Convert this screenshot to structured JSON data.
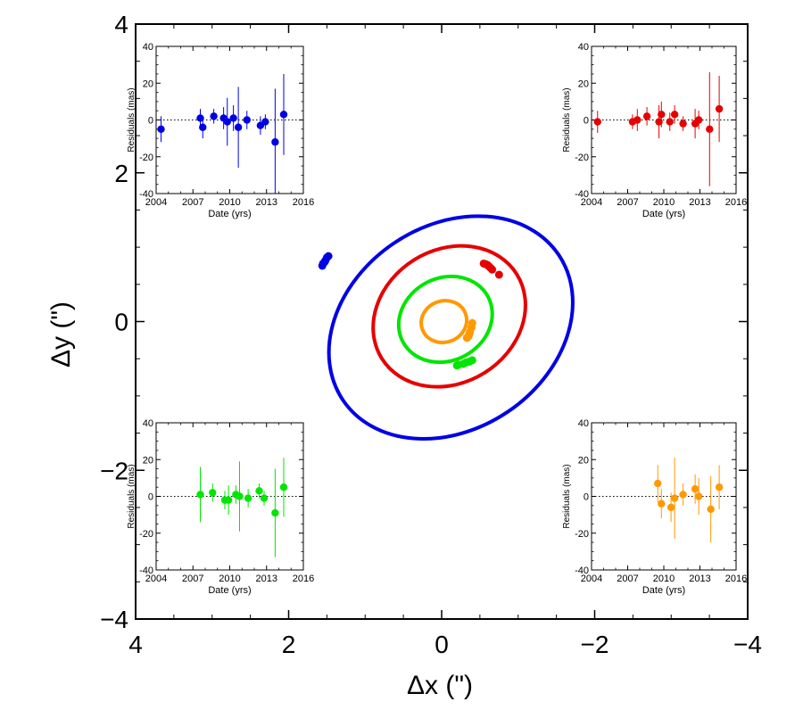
{
  "chart_data": {
    "type": "scatter",
    "main": {
      "xlabel": "Δx (\")",
      "ylabel": "Δy (\")",
      "xlim": [
        4,
        -4
      ],
      "ylim": [
        -4,
        4
      ],
      "xticks": [
        4,
        2,
        0,
        -2,
        -4
      ],
      "yticks": [
        -4,
        -2,
        0,
        2,
        4
      ],
      "tick_labels_x": [
        "4",
        "2",
        "0",
        "−2",
        "−4"
      ],
      "tick_labels_y": [
        "−4",
        "−2",
        "0",
        "2",
        "4"
      ],
      "orbits": [
        {
          "name": "blue",
          "color": "#0000e6",
          "center": [
            -0.12,
            -0.08
          ],
          "a": 1.7,
          "b": 1.33,
          "angle_deg": -34,
          "points": [
            [
              1.55,
              0.78
            ],
            [
              1.52,
              0.82
            ],
            [
              1.5,
              0.86
            ],
            [
              1.48,
              0.88
            ],
            [
              1.56,
              0.75
            ],
            [
              1.53,
              0.8
            ]
          ]
        },
        {
          "name": "red",
          "color": "#e60000",
          "center": [
            -0.1,
            0.07
          ],
          "a": 1.04,
          "b": 0.87,
          "angle_deg": -32,
          "points": [
            [
              -0.55,
              0.78
            ],
            [
              -0.58,
              0.77
            ],
            [
              -0.6,
              0.76
            ],
            [
              -0.62,
              0.74
            ],
            [
              -0.64,
              0.72
            ],
            [
              -0.66,
              0.7
            ],
            [
              -0.75,
              0.63
            ]
          ]
        },
        {
          "name": "green",
          "color": "#00e600",
          "center": [
            -0.05,
            0.03
          ],
          "a": 0.63,
          "b": 0.54,
          "angle_deg": -28,
          "points": [
            [
              -0.22,
              -0.58
            ],
            [
              -0.28,
              -0.57
            ],
            [
              -0.32,
              -0.55
            ],
            [
              -0.36,
              -0.54
            ],
            [
              -0.4,
              -0.52
            ],
            [
              -0.2,
              -0.59
            ]
          ]
        },
        {
          "name": "orange",
          "color": "#ff9900",
          "center": [
            -0.03,
            0.0
          ],
          "a": 0.3,
          "b": 0.27,
          "angle_deg": -20,
          "points": [
            [
              -0.4,
              -0.02
            ],
            [
              -0.39,
              -0.08
            ],
            [
              -0.37,
              -0.14
            ],
            [
              -0.35,
              -0.2
            ],
            [
              -0.33,
              -0.22
            ],
            [
              -0.36,
              -0.17
            ]
          ]
        }
      ]
    },
    "insets": [
      {
        "corner": "top-left",
        "color": "#0000e6",
        "xlabel": "Date (yrs)",
        "ylabel": "Residuals (mas)",
        "xlim": [
          2004,
          2016
        ],
        "ylim": [
          -40,
          40
        ],
        "xticks": [
          2004,
          2007,
          2010,
          2013,
          2016
        ],
        "yticks": [
          -40,
          -20,
          0,
          20,
          40
        ],
        "points": [
          {
            "x": 2004.4,
            "y": -5,
            "err": 7
          },
          {
            "x": 2007.6,
            "y": 1,
            "err": 5
          },
          {
            "x": 2007.8,
            "y": -4,
            "err": 6
          },
          {
            "x": 2008.7,
            "y": 2,
            "err": 4
          },
          {
            "x": 2009.5,
            "y": 1,
            "err": 6
          },
          {
            "x": 2009.8,
            "y": -1,
            "err": 13
          },
          {
            "x": 2010.3,
            "y": 1,
            "err": 7
          },
          {
            "x": 2010.7,
            "y": -4,
            "err": 22
          },
          {
            "x": 2011.4,
            "y": 0,
            "err": 5
          },
          {
            "x": 2012.5,
            "y": -3,
            "err": 5
          },
          {
            "x": 2012.9,
            "y": -1,
            "err": 4
          },
          {
            "x": 2013.7,
            "y": -12,
            "err": 29
          },
          {
            "x": 2014.4,
            "y": 3,
            "err": 22
          }
        ]
      },
      {
        "corner": "top-right",
        "color": "#e60000",
        "xlabel": "Date (yrs)",
        "ylabel": "Residuals (mas)",
        "xlim": [
          2004,
          2016
        ],
        "ylim": [
          -40,
          40
        ],
        "xticks": [
          2004,
          2007,
          2010,
          2013,
          2016
        ],
        "yticks": [
          -40,
          -20,
          0,
          20,
          40
        ],
        "points": [
          {
            "x": 2004.5,
            "y": -1,
            "err": 6
          },
          {
            "x": 2007.4,
            "y": -1,
            "err": 4
          },
          {
            "x": 2007.8,
            "y": 0,
            "err": 6
          },
          {
            "x": 2008.6,
            "y": 2,
            "err": 5
          },
          {
            "x": 2009.6,
            "y": -1,
            "err": 9
          },
          {
            "x": 2009.8,
            "y": 3,
            "err": 7
          },
          {
            "x": 2010.5,
            "y": -1,
            "err": 5
          },
          {
            "x": 2010.9,
            "y": 3,
            "err": 5
          },
          {
            "x": 2011.6,
            "y": -2,
            "err": 4
          },
          {
            "x": 2012.6,
            "y": -2,
            "err": 8
          },
          {
            "x": 2012.9,
            "y": 0,
            "err": 5
          },
          {
            "x": 2013.8,
            "y": -5,
            "err": 31
          },
          {
            "x": 2014.6,
            "y": 6,
            "err": 18
          }
        ]
      },
      {
        "corner": "bottom-left",
        "color": "#00e600",
        "xlabel": "Date (yrs)",
        "ylabel": "Residuals (mas)",
        "xlim": [
          2004,
          2016
        ],
        "ylim": [
          -40,
          40
        ],
        "xticks": [
          2004,
          2007,
          2010,
          2013,
          2016
        ],
        "yticks": [
          -40,
          -20,
          0,
          20,
          40
        ],
        "points": [
          {
            "x": 2007.6,
            "y": 1,
            "err": 15
          },
          {
            "x": 2008.6,
            "y": 2,
            "err": 5
          },
          {
            "x": 2009.6,
            "y": -2,
            "err": 5
          },
          {
            "x": 2009.9,
            "y": -2,
            "err": 8
          },
          {
            "x": 2010.5,
            "y": 1,
            "err": 5
          },
          {
            "x": 2010.8,
            "y": 0,
            "err": 19
          },
          {
            "x": 2011.5,
            "y": -1,
            "err": 5
          },
          {
            "x": 2012.4,
            "y": 3,
            "err": 4
          },
          {
            "x": 2012.8,
            "y": -1,
            "err": 4
          },
          {
            "x": 2013.7,
            "y": -9,
            "err": 24
          },
          {
            "x": 2014.4,
            "y": 5,
            "err": 16
          }
        ]
      },
      {
        "corner": "bottom-right",
        "color": "#ff9900",
        "xlabel": "Date (yrs)",
        "ylabel": "Residuals (mas)",
        "xlim": [
          2004,
          2016
        ],
        "ylim": [
          -40,
          40
        ],
        "xticks": [
          2004,
          2007,
          2010,
          2013,
          2016
        ],
        "yticks": [
          -40,
          -20,
          0,
          20,
          40
        ],
        "points": [
          {
            "x": 2009.5,
            "y": 7,
            "err": 10
          },
          {
            "x": 2009.8,
            "y": -4,
            "err": 8
          },
          {
            "x": 2010.6,
            "y": -6,
            "err": 8
          },
          {
            "x": 2010.9,
            "y": -1,
            "err": 22
          },
          {
            "x": 2011.6,
            "y": 1,
            "err": 6
          },
          {
            "x": 2012.6,
            "y": 4,
            "err": 8
          },
          {
            "x": 2012.9,
            "y": 0,
            "err": 10
          },
          {
            "x": 2013.9,
            "y": -7,
            "err": 18
          },
          {
            "x": 2014.6,
            "y": 5,
            "err": 12
          }
        ]
      }
    ]
  }
}
